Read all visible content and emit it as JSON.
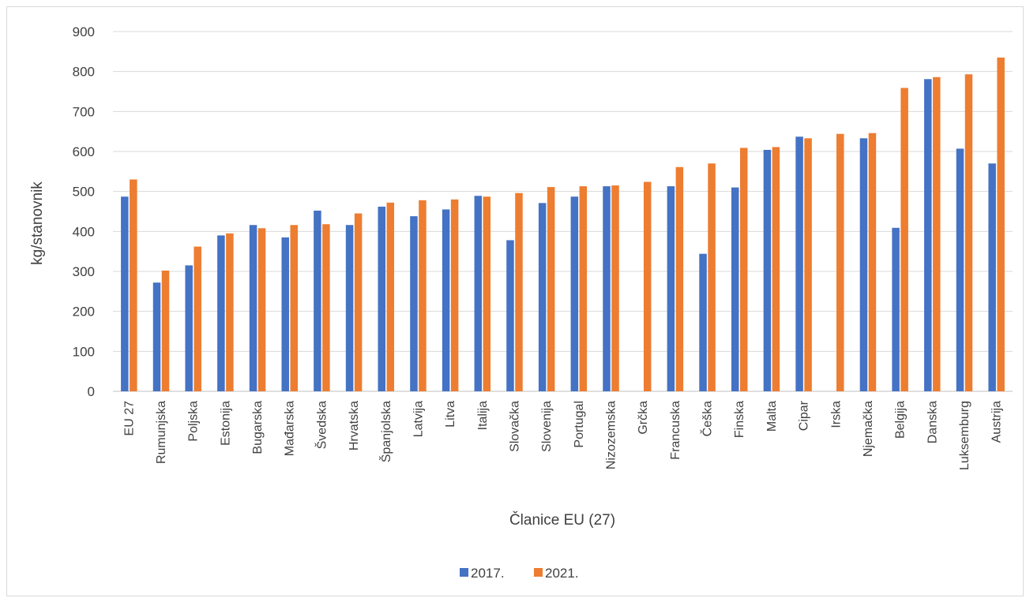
{
  "chart_data": {
    "type": "bar",
    "title": "",
    "xlabel": "Članice EU (27)",
    "ylabel": "kg/stanovnik",
    "ylim": [
      0,
      900
    ],
    "yticks": [
      0,
      100,
      200,
      300,
      400,
      500,
      600,
      700,
      800,
      900
    ],
    "grid": true,
    "legend_position": "bottom",
    "categories": [
      "EU 27",
      "Rumunjska",
      "Poljska",
      "Estonija",
      "Bugarska",
      "Mađarska",
      "Švedska",
      "Hrvatska",
      "Španjolska",
      "Latvija",
      "Litva",
      "Italija",
      "Slovačka",
      "Slovenija",
      "Portugal",
      "Nizozemska",
      "Grčka",
      "Francuska",
      "Češka",
      "Finska",
      "Malta",
      "Cipar",
      "Irska",
      "Njemačka",
      "Belgija",
      "Danska",
      "Luksemburg",
      "Austrija"
    ],
    "series": [
      {
        "name": "2017.",
        "color": "#4472c4",
        "values": [
          487,
          272,
          315,
          390,
          416,
          385,
          452,
          416,
          462,
          438,
          455,
          489,
          378,
          471,
          487,
          513,
          null,
          513,
          344,
          510,
          604,
          637,
          null,
          633,
          409,
          781,
          607,
          570
        ]
      },
      {
        "name": "2021.",
        "color": "#ed7d31",
        "values": [
          530,
          302,
          362,
          395,
          408,
          416,
          418,
          445,
          472,
          478,
          480,
          487,
          496,
          511,
          513,
          515,
          524,
          561,
          570,
          609,
          611,
          633,
          644,
          646,
          759,
          786,
          793,
          835
        ]
      }
    ]
  }
}
